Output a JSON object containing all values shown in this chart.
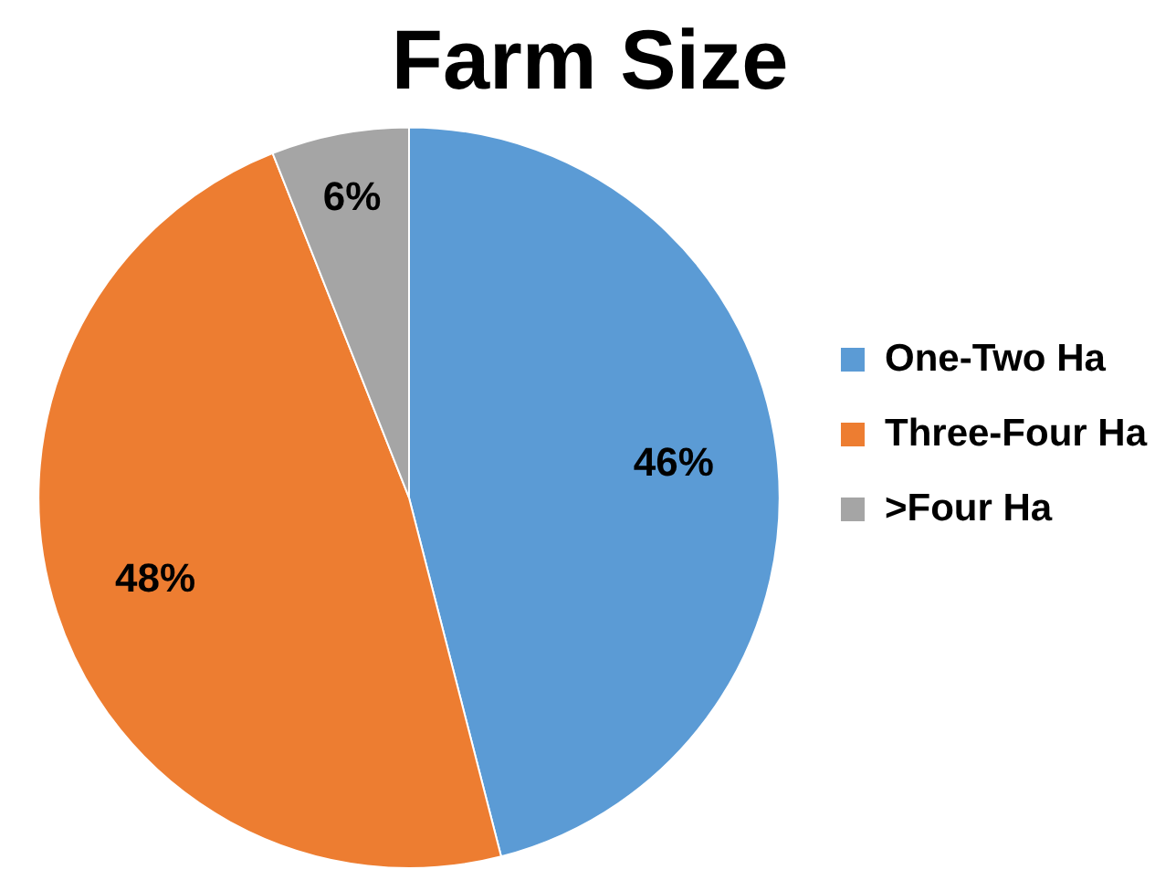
{
  "chart_data": {
    "type": "pie",
    "title": "Farm Size",
    "categories": [
      "One-Two Ha",
      "Three-Four Ha",
      ">Four Ha"
    ],
    "values": [
      46,
      48,
      6
    ],
    "colors": [
      "#5b9bd5",
      "#ed7d31",
      "#a5a5a5"
    ],
    "value_labels": [
      "46%",
      "48%",
      "6%"
    ],
    "legend": "right"
  }
}
